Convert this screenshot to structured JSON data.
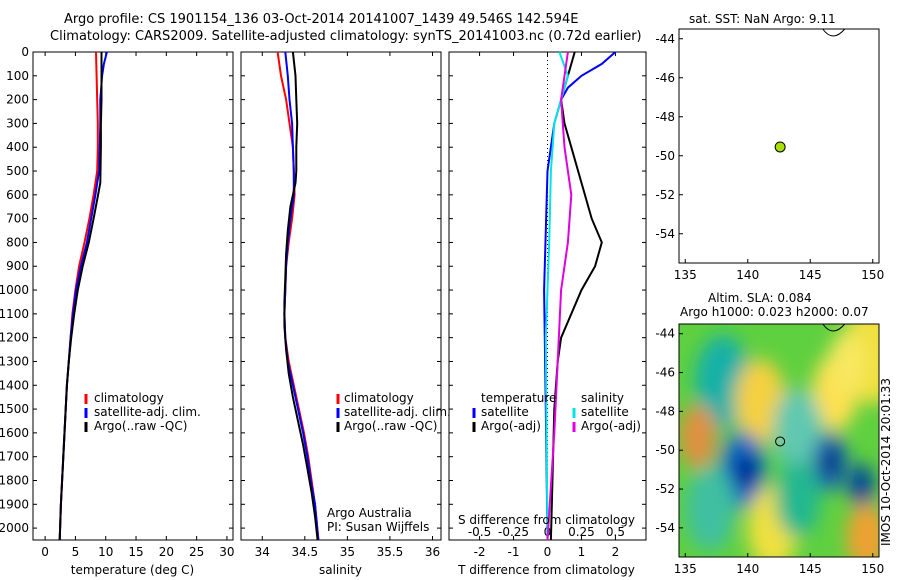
{
  "header": {
    "line1": "Argo profile: CS 1901154_136 03-Oct-2014 20141007_1439 49.546S 142.594E",
    "line2": "Climatology: CARS2009. Satellite-adjusted climatology: synTS_20141003.nc (0.72d earlier)"
  },
  "colors": {
    "climatology": "#ff0000",
    "satellite": "#0000ff",
    "argo": "#000000",
    "s_satellite": "#00e5e5",
    "s_argo": "#e000e0",
    "marker": "#a8e000"
  },
  "chart_data": [
    {
      "type": "line",
      "panel": "temperature",
      "xlabel": "temperature (deg C)",
      "ylabel": "",
      "xlim": [
        -2,
        31
      ],
      "ylim": [
        2050,
        0
      ],
      "xticks": [
        0,
        5,
        10,
        15,
        20,
        25,
        30
      ],
      "yticks": [
        0,
        100,
        200,
        300,
        400,
        500,
        600,
        700,
        800,
        900,
        1000,
        1100,
        1200,
        1300,
        1400,
        1500,
        1600,
        1700,
        1800,
        1900,
        2000
      ],
      "legend": [
        "climatology",
        "satellite-adj. clim.",
        "Argo(..raw -QC)"
      ],
      "series": [
        {
          "name": "climatology",
          "color": "#ff0000",
          "points": [
            [
              8.4,
              0
            ],
            [
              8.5,
              100
            ],
            [
              8.6,
              200
            ],
            [
              8.7,
              300
            ],
            [
              8.7,
              400
            ],
            [
              8.6,
              500
            ],
            [
              8.0,
              600
            ],
            [
              7.3,
              700
            ],
            [
              6.5,
              800
            ],
            [
              5.6,
              900
            ],
            [
              5.0,
              1000
            ],
            [
              4.5,
              1100
            ],
            [
              4.2,
              1200
            ],
            [
              3.9,
              1300
            ],
            [
              3.6,
              1400
            ],
            [
              3.4,
              1500
            ],
            [
              3.2,
              1600
            ],
            [
              3.0,
              1700
            ],
            [
              2.8,
              1800
            ],
            [
              2.6,
              1900
            ],
            [
              2.4,
              2050
            ]
          ]
        },
        {
          "name": "satellite-adj. clim.",
          "color": "#0000ff",
          "points": [
            [
              10.2,
              0
            ],
            [
              9.7,
              50
            ],
            [
              9.4,
              100
            ],
            [
              9.1,
              200
            ],
            [
              9.1,
              300
            ],
            [
              9.0,
              400
            ],
            [
              8.9,
              500
            ],
            [
              8.3,
              600
            ],
            [
              7.6,
              700
            ],
            [
              6.9,
              800
            ],
            [
              5.9,
              900
            ],
            [
              5.1,
              1000
            ],
            [
              4.6,
              1100
            ],
            [
              4.2,
              1200
            ],
            [
              3.9,
              1300
            ],
            [
              3.6,
              1400
            ],
            [
              3.4,
              1500
            ],
            [
              3.2,
              1600
            ],
            [
              3.0,
              1700
            ],
            [
              2.8,
              1800
            ],
            [
              2.6,
              1900
            ],
            [
              2.4,
              2050
            ]
          ]
        },
        {
          "name": "Argo(..raw -QC)",
          "color": "#000000",
          "points": [
            [
              9.3,
              0
            ],
            [
              9.3,
              100
            ],
            [
              9.3,
              200
            ],
            [
              9.2,
              300
            ],
            [
              9.2,
              400
            ],
            [
              9.1,
              550
            ],
            [
              8.6,
              620
            ],
            [
              8.0,
              700
            ],
            [
              7.2,
              800
            ],
            [
              6.2,
              900
            ],
            [
              5.4,
              1000
            ],
            [
              4.8,
              1100
            ],
            [
              4.3,
              1200
            ],
            [
              3.9,
              1300
            ],
            [
              3.6,
              1400
            ],
            [
              3.4,
              1500
            ],
            [
              3.2,
              1600
            ],
            [
              3.0,
              1700
            ],
            [
              2.8,
              1800
            ],
            [
              2.6,
              1900
            ],
            [
              2.4,
              2050
            ]
          ]
        }
      ]
    },
    {
      "type": "line",
      "panel": "salinity",
      "xlabel": "salinity",
      "ylabel": "",
      "xlim": [
        33.75,
        36.1
      ],
      "ylim": [
        2050,
        0
      ],
      "xticks": [
        34,
        34.5,
        35,
        35.5,
        36
      ],
      "legend": [
        "climatology",
        "satellite-adj. clim.",
        "Argo(..raw -QC)"
      ],
      "annotation": [
        "Argo Australia",
        "PI: Susan Wijffels"
      ],
      "series": [
        {
          "name": "climatology",
          "color": "#ff0000",
          "points": [
            [
              34.18,
              0
            ],
            [
              34.22,
              100
            ],
            [
              34.28,
              200
            ],
            [
              34.32,
              300
            ],
            [
              34.36,
              400
            ],
            [
              34.37,
              500
            ],
            [
              34.38,
              600
            ],
            [
              34.35,
              700
            ],
            [
              34.31,
              800
            ],
            [
              34.28,
              900
            ],
            [
              34.27,
              1000
            ],
            [
              34.26,
              1100
            ],
            [
              34.27,
              1200
            ],
            [
              34.31,
              1300
            ],
            [
              34.37,
              1400
            ],
            [
              34.43,
              1500
            ],
            [
              34.49,
              1600
            ],
            [
              34.54,
              1700
            ],
            [
              34.58,
              1800
            ],
            [
              34.62,
              1900
            ],
            [
              34.66,
              2050
            ]
          ]
        },
        {
          "name": "satellite-adj. clim.",
          "color": "#0000ff",
          "points": [
            [
              34.27,
              0
            ],
            [
              34.3,
              100
            ],
            [
              34.32,
              200
            ],
            [
              34.35,
              300
            ],
            [
              34.36,
              400
            ],
            [
              34.37,
              500
            ],
            [
              34.37,
              600
            ],
            [
              34.33,
              700
            ],
            [
              34.3,
              800
            ],
            [
              34.28,
              900
            ],
            [
              34.27,
              1000
            ],
            [
              34.26,
              1100
            ],
            [
              34.27,
              1200
            ],
            [
              34.3,
              1300
            ],
            [
              34.36,
              1400
            ],
            [
              34.42,
              1500
            ],
            [
              34.48,
              1600
            ],
            [
              34.53,
              1700
            ],
            [
              34.57,
              1800
            ],
            [
              34.62,
              1900
            ],
            [
              34.66,
              2050
            ]
          ]
        },
        {
          "name": "Argo(..raw -QC)",
          "color": "#000000",
          "points": [
            [
              34.36,
              0
            ],
            [
              34.39,
              100
            ],
            [
              34.4,
              200
            ],
            [
              34.41,
              300
            ],
            [
              34.4,
              400
            ],
            [
              34.4,
              500
            ],
            [
              34.39,
              550
            ],
            [
              34.33,
              650
            ],
            [
              34.3,
              750
            ],
            [
              34.28,
              850
            ],
            [
              34.27,
              950
            ],
            [
              34.26,
              1050
            ],
            [
              34.26,
              1150
            ],
            [
              34.28,
              1250
            ],
            [
              34.31,
              1350
            ],
            [
              34.36,
              1450
            ],
            [
              34.42,
              1550
            ],
            [
              34.48,
              1650
            ],
            [
              34.53,
              1750
            ],
            [
              34.58,
              1850
            ],
            [
              34.62,
              1950
            ],
            [
              34.65,
              2050
            ]
          ]
        }
      ]
    },
    {
      "type": "line",
      "panel": "differences",
      "xlabel": "T difference from climatology",
      "xlabel_top": "S difference from climatology",
      "xlim": [
        -2.9,
        2.9
      ],
      "ylim": [
        2050,
        0
      ],
      "xticks": [
        -2,
        -1,
        0,
        1,
        2
      ],
      "xticks_top": [
        -0.5,
        -0.25,
        0,
        0.25,
        0.5
      ],
      "legend_headers": [
        "temperature",
        "salinity"
      ],
      "legend": [
        "satellite",
        "Argo(-adj)",
        "satellite",
        "Argo(-adj)"
      ],
      "series": [
        {
          "name": "satellite",
          "color": "#0000ff",
          "points": [
            [
              2.0,
              0
            ],
            [
              1.6,
              50
            ],
            [
              1.0,
              100
            ],
            [
              0.6,
              150
            ],
            [
              0.4,
              200
            ],
            [
              0.2,
              300
            ],
            [
              0.0,
              500
            ],
            [
              -0.1,
              1000
            ],
            [
              -0.05,
              1500
            ],
            [
              0.0,
              2050
            ]
          ]
        },
        {
          "name": "Argo(-adj)",
          "color": "#000000",
          "points": [
            [
              0.8,
              0
            ],
            [
              0.6,
              100
            ],
            [
              0.4,
              200
            ],
            [
              0.5,
              300
            ],
            [
              0.7,
              400
            ],
            [
              1.0,
              550
            ],
            [
              1.3,
              700
            ],
            [
              1.6,
              800
            ],
            [
              1.4,
              900
            ],
            [
              1.0,
              1000
            ],
            [
              0.7,
              1100
            ],
            [
              0.4,
              1200
            ],
            [
              0.3,
              1300
            ],
            [
              0.2,
              1500
            ],
            [
              0.1,
              2050
            ]
          ]
        },
        {
          "name": "satellite",
          "color": "#00e5e5",
          "points": [
            [
              0.35,
              0
            ],
            [
              0.6,
              100
            ],
            [
              0.4,
              200
            ],
            [
              0.2,
              300
            ],
            [
              0.1,
              500
            ],
            [
              0.05,
              800
            ],
            [
              0.0,
              1000
            ],
            [
              -0.05,
              1200
            ],
            [
              0.0,
              2050
            ]
          ]
        },
        {
          "name": "Argo(-adj)",
          "color": "#e000e0",
          "points": [
            [
              0.6,
              0
            ],
            [
              0.5,
              100
            ],
            [
              0.4,
              200
            ],
            [
              0.5,
              400
            ],
            [
              0.7,
              600
            ],
            [
              0.6,
              800
            ],
            [
              0.4,
              1000
            ],
            [
              0.3,
              1300
            ],
            [
              0.2,
              1600
            ],
            [
              0.0,
              2050
            ]
          ]
        }
      ]
    },
    {
      "type": "scatter",
      "panel": "sst_map",
      "title": "sat. SST: NaN Argo: 9.11",
      "xlim": [
        134.5,
        150.5
      ],
      "ylim": [
        -55.5,
        -43.5
      ],
      "xticks": [
        135,
        140,
        145,
        150
      ],
      "yticks": [
        -44,
        -46,
        -48,
        -50,
        -52,
        -54
      ],
      "points": [
        [
          142.59,
          -49.55
        ]
      ]
    },
    {
      "type": "heatmap",
      "panel": "sla_map",
      "title": "Altim. SLA: 0.084",
      "subtitle": "Argo h1000: 0.023 h2000: 0.07",
      "side_label": "IMOS 10-Oct-2014 20:01:33",
      "xlim": [
        134.5,
        150.5
      ],
      "ylim": [
        -55.5,
        -43.5
      ],
      "xticks": [
        135,
        140,
        145,
        150
      ],
      "yticks": [
        -44,
        -46,
        -48,
        -50,
        -52,
        -54
      ],
      "points": [
        [
          142.59,
          -49.55
        ]
      ]
    }
  ]
}
